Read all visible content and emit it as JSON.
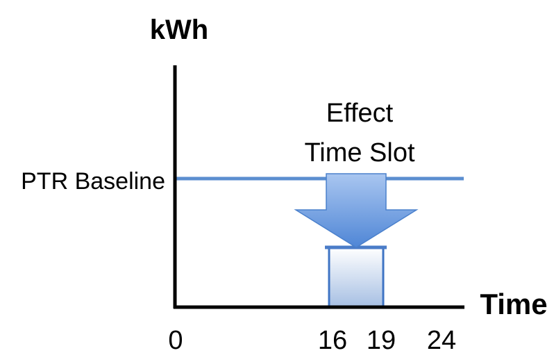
{
  "diagram": {
    "y_axis_label": "kWh",
    "x_axis_label": "Time",
    "baseline_label": "PTR Baseline",
    "effect_label_line1": "Effect",
    "effect_label_line2": "Time Slot",
    "x_ticks": [
      "0",
      "16",
      "19",
      "24"
    ],
    "colors": {
      "axis": "#000000",
      "baseline": "#5b8ed0",
      "arrow_light": "#a9c6f0",
      "arrow_dark": "#4f86d6",
      "arrow_edge": "#4a80cc",
      "slot_edge": "#3f74c4",
      "slot_fill_top": "#ffffff",
      "slot_fill_bottom": "#a6bfe3",
      "reduced_line": "#4a7cc8"
    }
  }
}
